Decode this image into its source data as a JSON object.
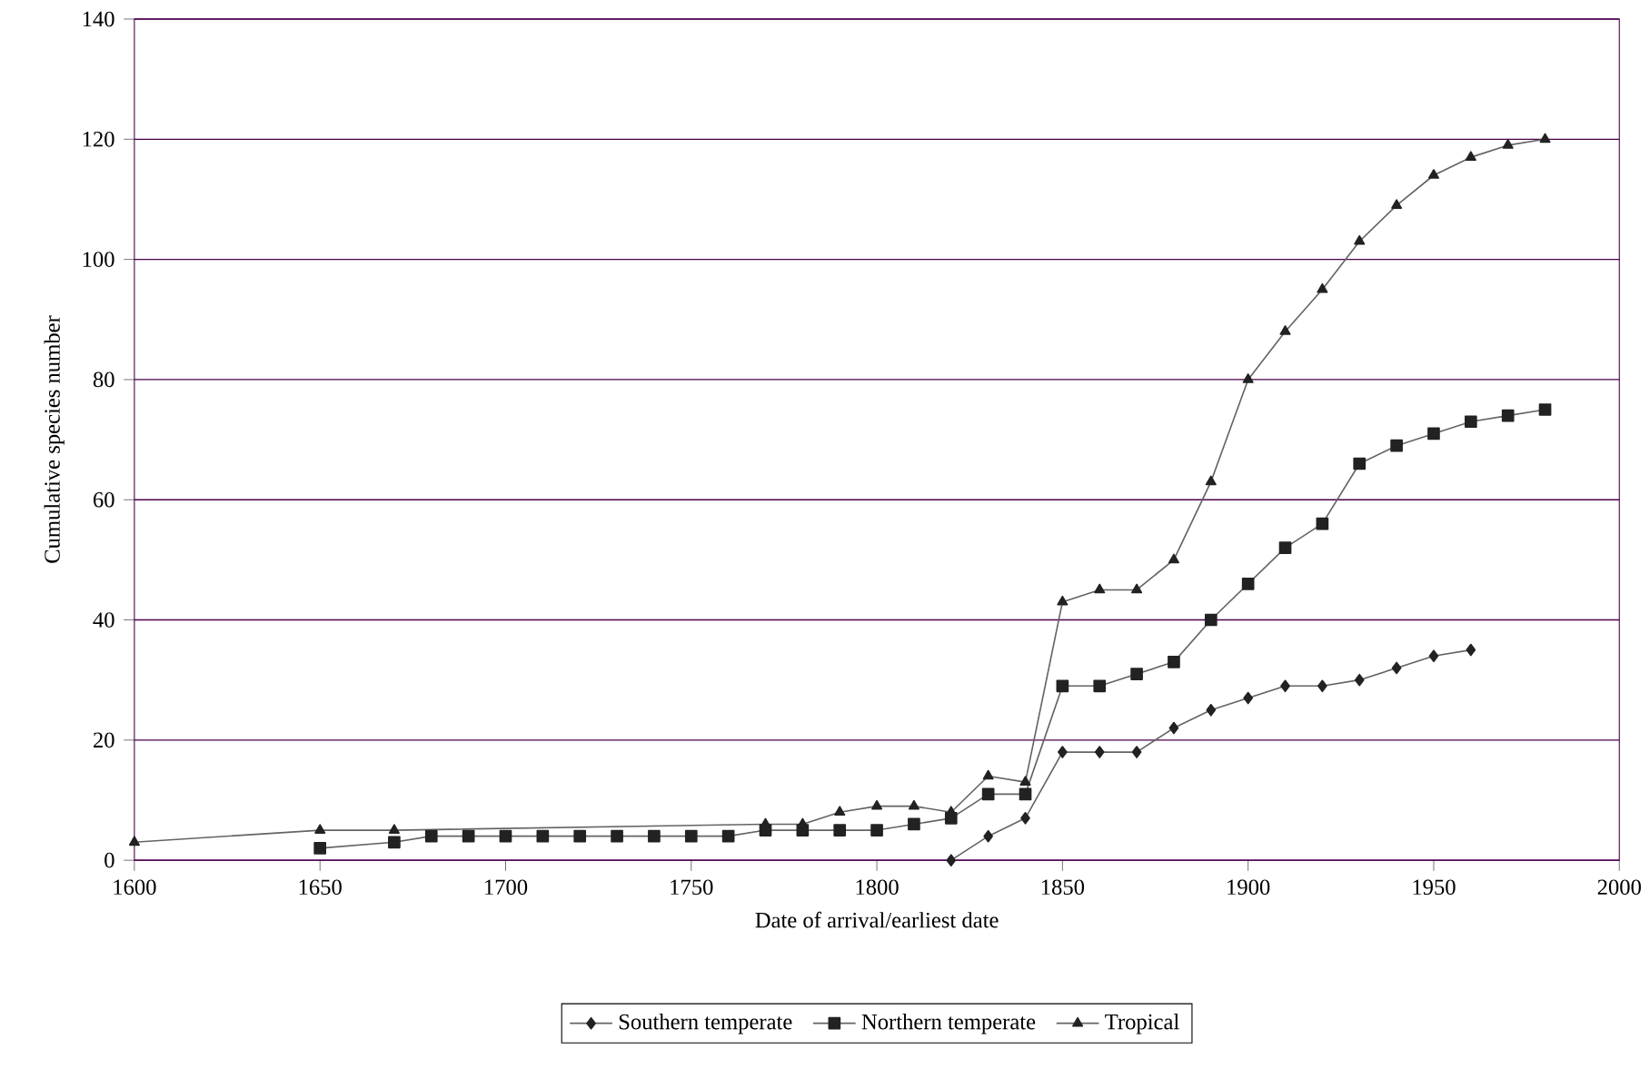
{
  "chart_data": {
    "type": "line",
    "xlabel": "Date of arrival/earliest date",
    "ylabel": "Cumulative species number",
    "xlim": [
      1600,
      2000
    ],
    "xticks": [
      1600,
      1650,
      1700,
      1750,
      1800,
      1850,
      1900,
      1950,
      2000
    ],
    "ylim": [
      0,
      140
    ],
    "yticks": [
      0,
      20,
      40,
      60,
      80,
      100,
      120,
      140
    ],
    "grid": "y",
    "legend": "bottom",
    "series": [
      {
        "name": "Southern temperate",
        "color": "#222222",
        "marker": "diamond",
        "x": [
          1820,
          1830,
          1840,
          1850,
          1860,
          1870,
          1880,
          1890,
          1900,
          1910,
          1920,
          1930,
          1940,
          1950,
          1960
        ],
        "values": [
          0,
          4,
          7,
          18,
          18,
          18,
          22,
          25,
          27,
          29,
          29,
          30,
          32,
          34,
          35
        ]
      },
      {
        "name": "Northern temperate",
        "color": "#222222",
        "marker": "square",
        "x": [
          1650,
          1670,
          1680,
          1690,
          1700,
          1710,
          1720,
          1730,
          1740,
          1750,
          1760,
          1770,
          1780,
          1790,
          1800,
          1810,
          1820,
          1830,
          1840,
          1850,
          1860,
          1870,
          1880,
          1890,
          1900,
          1910,
          1920,
          1930,
          1940,
          1950,
          1960,
          1970,
          1980
        ],
        "values": [
          2,
          3,
          4,
          4,
          4,
          4,
          4,
          4,
          4,
          4,
          4,
          5,
          5,
          5,
          5,
          6,
          7,
          11,
          11,
          29,
          29,
          31,
          33,
          40,
          46,
          52,
          56,
          66,
          69,
          71,
          73,
          74,
          75
        ]
      },
      {
        "name": "Tropical",
        "color": "#222222",
        "marker": "triangle",
        "x": [
          1600,
          1650,
          1670,
          1680,
          1690,
          1700,
          1710,
          1720,
          1730,
          1740,
          1750,
          1760,
          1770,
          1780,
          1790,
          1800,
          1810,
          1820,
          1830,
          1840,
          1850,
          1860,
          1870,
          1880,
          1890,
          1900,
          1910,
          1920,
          1930,
          1940,
          1950,
          1960,
          1970,
          1980
        ],
        "values": [
          3,
          5,
          5,
          null,
          null,
          null,
          null,
          null,
          null,
          null,
          null,
          null,
          6,
          6,
          8,
          9,
          9,
          8,
          14,
          13,
          43,
          45,
          45,
          50,
          63,
          80,
          88,
          95,
          103,
          109,
          114,
          117,
          119,
          120
        ]
      }
    ]
  }
}
